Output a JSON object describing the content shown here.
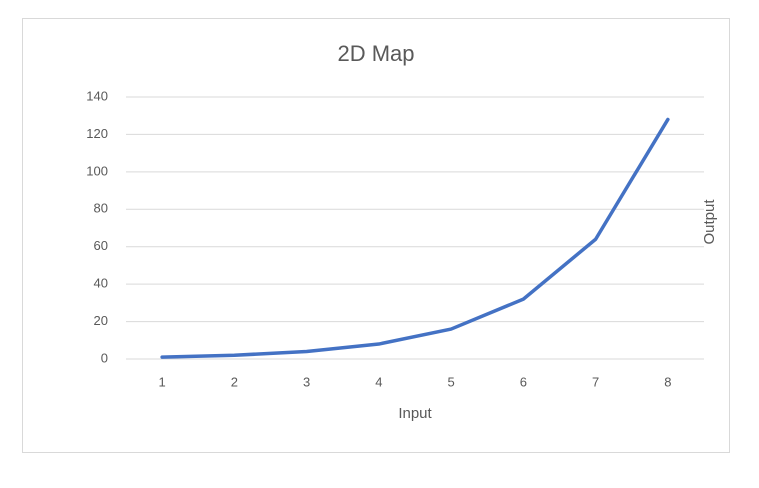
{
  "chart_data": {
    "type": "line",
    "title": "2D Map",
    "x_label": "Input",
    "y_label": "Output",
    "categories": [
      "1",
      "2",
      "3",
      "4",
      "5",
      "6",
      "7",
      "8"
    ],
    "series": [
      {
        "name": "Output",
        "color": "#4472c4",
        "values": [
          1,
          2,
          4,
          8,
          16,
          32,
          64,
          128
        ]
      }
    ],
    "ylim": [
      0,
      140
    ],
    "yticks": [
      0,
      20,
      40,
      60,
      80,
      100,
      120,
      140
    ],
    "grid": true
  }
}
